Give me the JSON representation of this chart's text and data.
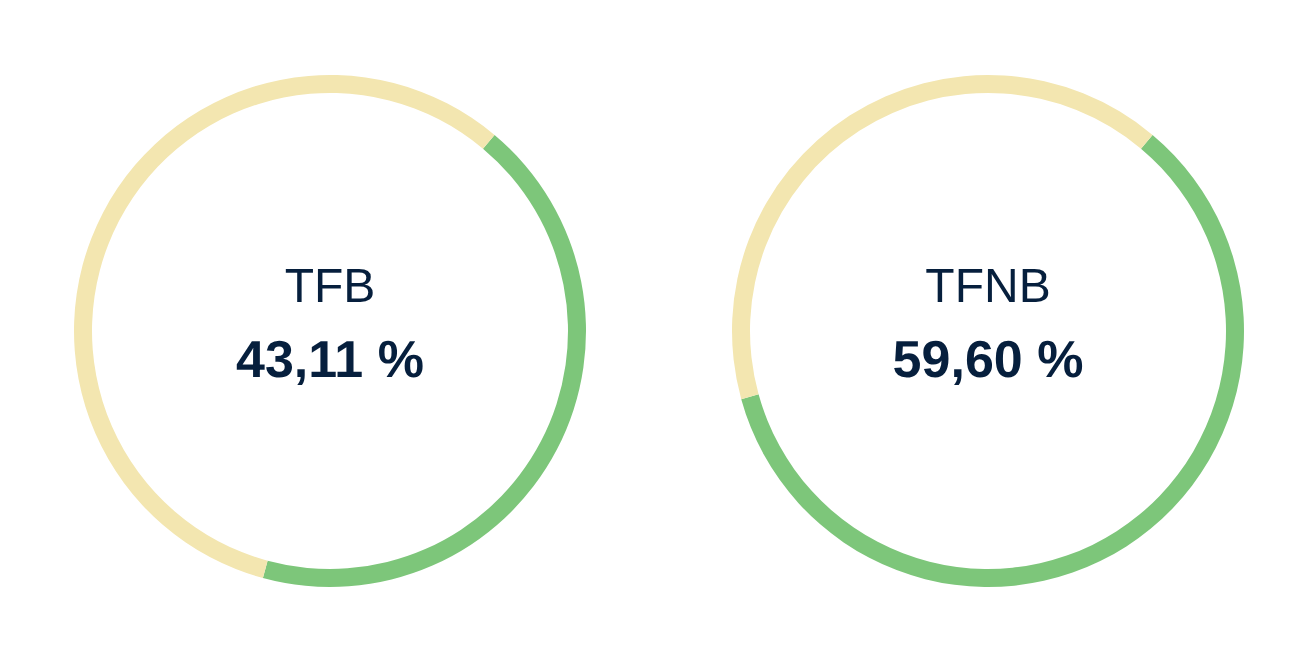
{
  "chart_data": [
    {
      "type": "donut",
      "title": "TFB",
      "categories": [
        null,
        null
      ],
      "values": [
        43.11,
        56.89
      ],
      "colors": [
        "#7dc67a",
        "#f3e6b0"
      ],
      "annotations": [
        "43,11 %"
      ]
    },
    {
      "type": "donut",
      "title": "TFNB",
      "categories": [
        null,
        null
      ],
      "values": [
        59.6,
        40.4
      ],
      "colors": [
        "#7dc67a",
        "#f3e6b0"
      ],
      "annotations": [
        "59,60 %"
      ]
    }
  ]
}
